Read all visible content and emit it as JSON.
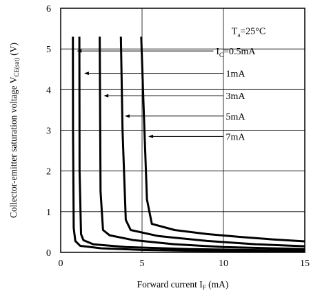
{
  "chart_data": {
    "type": "line",
    "xlabel": {
      "main": "Forward current I",
      "sub": "F",
      "unit": " (mA)"
    },
    "ylabel": {
      "main": "Collector-emitter saturation voltage  V",
      "sub": "CE(sat)",
      "unit": " (V)"
    },
    "xlim": [
      0,
      15
    ],
    "ylim": [
      0,
      6
    ],
    "x_ticks": [
      "0",
      "5",
      "10",
      "15"
    ],
    "y_ticks": [
      "0",
      "1",
      "2",
      "3",
      "4",
      "5",
      "6"
    ],
    "grid": true,
    "condition": {
      "main": "T",
      "sub": "a",
      "rest": "=25°C"
    },
    "series": [
      {
        "label": "Iₑ",
        "name_main": "I",
        "name_sub": "C",
        "name_rest": "=0.5mA",
        "x": [
          0.75,
          0.76,
          0.8,
          0.9,
          1.2,
          2.5,
          5.0,
          8.0,
          15.0
        ],
        "y": [
          5.3,
          3.0,
          0.6,
          0.28,
          0.16,
          0.1,
          0.06,
          0.04,
          0.02
        ]
      },
      {
        "name_main": "",
        "name_sub": "",
        "name_rest": "1mA",
        "x": [
          1.15,
          1.16,
          1.25,
          1.4,
          2.0,
          4.0,
          8.0,
          15.0
        ],
        "y": [
          5.3,
          2.0,
          0.45,
          0.3,
          0.2,
          0.13,
          0.08,
          0.04
        ]
      },
      {
        "name_main": "",
        "name_sub": "",
        "name_rest": "3mA",
        "x": [
          2.4,
          2.45,
          2.6,
          3.0,
          4.5,
          7.0,
          10.0,
          15.0
        ],
        "y": [
          5.3,
          1.5,
          0.55,
          0.42,
          0.3,
          0.2,
          0.13,
          0.08
        ]
      },
      {
        "name_main": "",
        "name_sub": "",
        "name_rest": "5mA",
        "x": [
          3.7,
          3.8,
          4.0,
          4.3,
          6.0,
          9.0,
          12.0,
          15.0
        ],
        "y": [
          5.3,
          3.0,
          0.8,
          0.55,
          0.4,
          0.28,
          0.2,
          0.15
        ]
      },
      {
        "name_main": "",
        "name_sub": "",
        "name_rest": "7mA",
        "x": [
          4.95,
          5.1,
          5.3,
          5.6,
          7.0,
          9.0,
          11.0,
          13.0,
          15.0
        ],
        "y": [
          5.3,
          3.5,
          1.3,
          0.7,
          0.55,
          0.45,
          0.38,
          0.32,
          0.27
        ]
      }
    ]
  }
}
